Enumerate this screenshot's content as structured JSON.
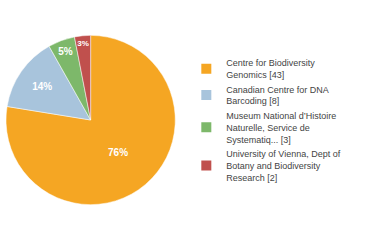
{
  "chart_data": {
    "type": "pie",
    "categories": [
      "Centre for Biodiversity\nGenomics [43]",
      "Canadian Centre for DNA\nBarcoding [8]",
      "Museum National d’Histoire\nNaturelle, Service de\nSystematiq... [3]",
      "University of Vienna, Dept of\nBotany and Biodiversity\nResearch [2]"
    ],
    "values": [
      76,
      14,
      5,
      3
    ],
    "value_labels": [
      "76%",
      "14%",
      "5%",
      "3%"
    ],
    "data_labels": true,
    "colors": [
      "#f5a623",
      "#a8c4dc",
      "#7db86a",
      "#c0504d"
    ],
    "legend": "right"
  }
}
